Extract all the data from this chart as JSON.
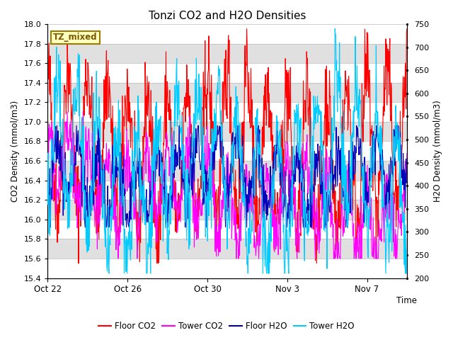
{
  "title": "Tonzi CO2 and H2O Densities",
  "xlabel": "Time",
  "ylabel_left": "CO2 Density (mmol/m3)",
  "ylabel_right": "H2O Density (mmol/m3)",
  "ylim_left": [
    15.4,
    18.0
  ],
  "ylim_right": [
    200,
    750
  ],
  "xtick_labels": [
    "Oct 22",
    "Oct 26",
    "Oct 30",
    "Nov 3",
    "Nov 7"
  ],
  "xtick_positions": [
    0,
    4,
    8,
    12,
    16
  ],
  "yticks_left": [
    15.4,
    15.6,
    15.8,
    16.0,
    16.2,
    16.4,
    16.6,
    16.8,
    17.0,
    17.2,
    17.4,
    17.6,
    17.8,
    18.0
  ],
  "yticks_right": [
    200,
    250,
    300,
    350,
    400,
    450,
    500,
    550,
    600,
    650,
    700,
    750
  ],
  "colors": {
    "floor_co2": "#FF0000",
    "tower_co2": "#FF00FF",
    "floor_h2o": "#0000BB",
    "tower_h2o": "#00CCFF"
  },
  "legend_labels": [
    "Floor CO2",
    "Tower CO2",
    "Floor H2O",
    "Tower H2O"
  ],
  "tz_label": "TZ_mixed",
  "background_color": "#FFFFFF",
  "plot_bg_color": "#E0E0E0",
  "n_days": 18,
  "seed": 42
}
